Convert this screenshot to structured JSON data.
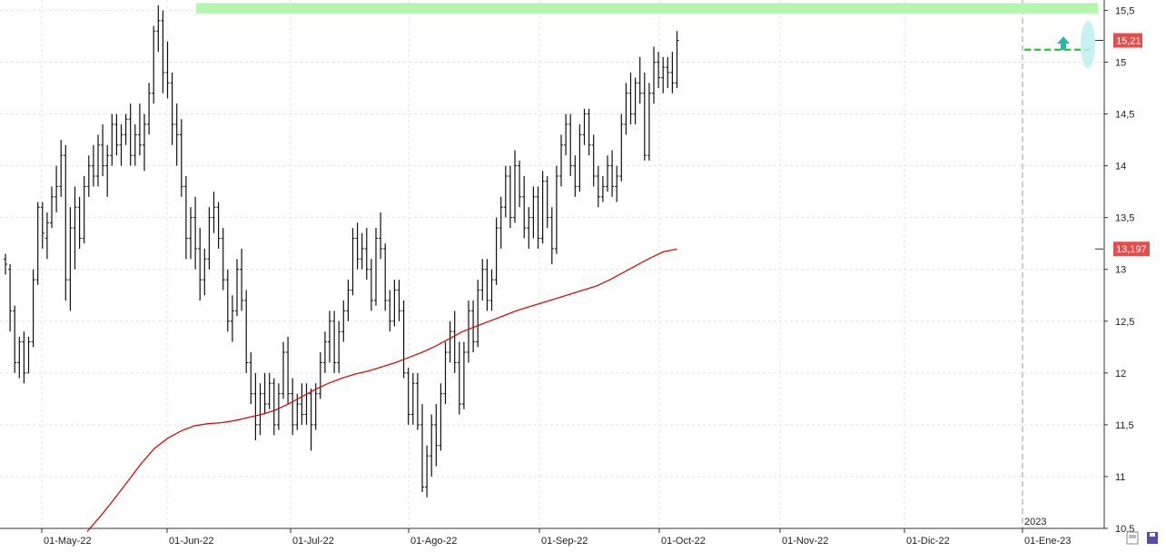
{
  "chart_data": {
    "type": "ohlc",
    "title": "",
    "xlabel": "",
    "ylabel": "",
    "ylim": [
      10.5,
      15.6
    ],
    "y_ticks": [
      "10,5",
      "11",
      "11,5",
      "12",
      "12,5",
      "13",
      "13,5",
      "14",
      "14,5",
      "15",
      "15,5"
    ],
    "x_tick_labels": [
      "01-May-22",
      "01-Jun-22",
      "01-Jul-22",
      "01-Ago-22",
      "01-Sep-22",
      "01-Oct-22",
      "01-Nov-22",
      "01-Dic-22",
      "01-Ene-23"
    ],
    "year_label": "2023",
    "grid": true,
    "price_badges": {
      "last": "15,21",
      "moving_average": "13,197"
    },
    "colors": {
      "bars": "#111111",
      "moving_average": "#cc1111",
      "resistance_zone": "#b6f5b0",
      "breakout_line": "#22cc22",
      "arrow": "#2ab5a8",
      "highlight": "#bfeff0",
      "badge": "#e05050"
    },
    "annotations": {
      "resistance_zone": [
        15.47,
        15.57
      ],
      "breakout_level": 15.12
    },
    "series": [
      {
        "type": "ohlc",
        "values": [
          [
            13.1,
            13.15,
            12.95,
            13.05
          ],
          [
            13.0,
            13.05,
            12.4,
            12.6
          ],
          [
            12.6,
            12.65,
            12.0,
            12.1
          ],
          [
            12.1,
            12.35,
            11.95,
            12.3
          ],
          [
            12.3,
            12.4,
            11.9,
            12.0
          ],
          [
            12.0,
            12.35,
            12.0,
            12.3
          ],
          [
            12.3,
            13.0,
            12.25,
            12.9
          ],
          [
            12.9,
            13.65,
            12.85,
            13.6
          ],
          [
            13.6,
            13.65,
            13.2,
            13.35
          ],
          [
            13.3,
            13.55,
            13.1,
            13.45
          ],
          [
            13.45,
            13.8,
            13.4,
            13.7
          ],
          [
            13.7,
            14.0,
            13.55,
            13.8
          ],
          [
            13.8,
            14.25,
            13.7,
            14.1
          ],
          [
            14.1,
            14.2,
            12.7,
            12.9
          ],
          [
            12.9,
            13.6,
            12.6,
            13.4
          ],
          [
            13.4,
            13.8,
            13.0,
            13.6
          ],
          [
            13.6,
            13.7,
            13.2,
            13.3
          ],
          [
            13.3,
            13.9,
            13.25,
            13.8
          ],
          [
            13.8,
            14.1,
            13.7,
            14.0
          ],
          [
            14.0,
            14.2,
            13.8,
            13.9
          ],
          [
            13.9,
            14.3,
            13.8,
            14.2
          ],
          [
            14.2,
            14.4,
            13.9,
            14.0
          ],
          [
            14.0,
            14.2,
            13.7,
            14.1
          ],
          [
            14.1,
            14.5,
            14.0,
            14.4
          ],
          [
            14.4,
            14.5,
            14.1,
            14.2
          ],
          [
            14.2,
            14.4,
            14.0,
            14.3
          ],
          [
            14.3,
            14.5,
            14.2,
            14.45
          ],
          [
            14.45,
            14.6,
            14.0,
            14.1
          ],
          [
            14.1,
            14.4,
            14.0,
            14.3
          ],
          [
            14.3,
            14.6,
            14.1,
            14.2
          ],
          [
            14.2,
            14.5,
            13.95,
            14.4
          ],
          [
            14.4,
            14.8,
            14.3,
            14.7
          ],
          [
            14.7,
            15.35,
            14.6,
            15.3
          ],
          [
            15.3,
            15.55,
            15.1,
            15.4
          ],
          [
            15.4,
            15.5,
            14.7,
            14.9
          ],
          [
            14.9,
            15.2,
            14.65,
            14.8
          ],
          [
            14.8,
            14.9,
            14.2,
            14.4
          ],
          [
            14.4,
            14.6,
            14.0,
            14.3
          ],
          [
            14.3,
            14.45,
            13.7,
            13.8
          ],
          [
            13.8,
            13.9,
            13.1,
            13.3
          ],
          [
            13.3,
            13.6,
            13.1,
            13.5
          ],
          [
            13.5,
            13.7,
            13.0,
            13.2
          ],
          [
            13.2,
            13.4,
            12.7,
            12.9
          ],
          [
            12.9,
            13.2,
            12.75,
            13.1
          ],
          [
            13.1,
            13.6,
            13.0,
            13.5
          ],
          [
            13.5,
            13.75,
            13.35,
            13.6
          ],
          [
            13.6,
            13.65,
            13.2,
            13.3
          ],
          [
            13.3,
            13.4,
            12.8,
            12.9
          ],
          [
            12.9,
            13.0,
            12.4,
            12.5
          ],
          [
            12.5,
            12.75,
            12.3,
            12.6
          ],
          [
            12.6,
            13.1,
            12.55,
            13.0
          ],
          [
            13.0,
            13.2,
            12.6,
            12.7
          ],
          [
            12.7,
            12.8,
            12.0,
            12.1
          ],
          [
            12.1,
            12.2,
            11.7,
            11.8
          ],
          [
            11.8,
            12.0,
            11.35,
            11.5
          ],
          [
            11.5,
            11.9,
            11.4,
            11.8
          ],
          [
            11.8,
            12.0,
            11.6,
            11.7
          ],
          [
            11.7,
            12.0,
            11.65,
            11.9
          ],
          [
            11.9,
            11.95,
            11.4,
            11.5
          ],
          [
            11.5,
            11.9,
            11.45,
            11.8
          ],
          [
            11.8,
            12.3,
            11.75,
            12.2
          ],
          [
            12.2,
            12.35,
            11.7,
            11.8
          ],
          [
            11.8,
            11.95,
            11.4,
            11.5
          ],
          [
            11.5,
            11.8,
            11.45,
            11.7
          ],
          [
            11.7,
            11.9,
            11.5,
            11.6
          ],
          [
            11.6,
            11.9,
            11.5,
            11.8
          ],
          [
            11.8,
            11.85,
            11.25,
            11.5
          ],
          [
            11.5,
            11.9,
            11.45,
            11.8
          ],
          [
            11.8,
            12.2,
            11.75,
            12.1
          ],
          [
            12.1,
            12.4,
            12.0,
            12.3
          ],
          [
            12.3,
            12.6,
            12.1,
            12.5
          ],
          [
            12.5,
            12.6,
            12.0,
            12.1
          ],
          [
            12.1,
            12.5,
            12.0,
            12.4
          ],
          [
            12.4,
            12.7,
            12.3,
            12.6
          ],
          [
            12.6,
            12.9,
            12.5,
            12.8
          ],
          [
            12.8,
            13.4,
            12.75,
            13.3
          ],
          [
            13.3,
            13.45,
            13.0,
            13.1
          ],
          [
            13.1,
            13.35,
            13.0,
            13.2
          ],
          [
            13.2,
            13.4,
            12.9,
            13.0
          ],
          [
            13.0,
            13.1,
            12.6,
            12.7
          ],
          [
            12.7,
            13.4,
            12.65,
            13.3
          ],
          [
            13.3,
            13.55,
            13.1,
            13.2
          ],
          [
            13.2,
            13.25,
            12.6,
            12.7
          ],
          [
            12.7,
            12.8,
            12.4,
            12.5
          ],
          [
            12.5,
            12.9,
            12.45,
            12.8
          ],
          [
            12.8,
            12.9,
            12.5,
            12.6
          ],
          [
            12.6,
            12.7,
            11.95,
            12.0
          ],
          [
            12.0,
            12.05,
            11.5,
            11.6
          ],
          [
            11.6,
            12.0,
            11.5,
            11.9
          ],
          [
            11.9,
            12.0,
            11.45,
            11.5
          ],
          [
            11.5,
            11.7,
            10.85,
            10.9
          ],
          [
            10.9,
            11.3,
            10.8,
            11.2
          ],
          [
            11.2,
            11.6,
            11.0,
            11.5
          ],
          [
            11.5,
            11.7,
            11.1,
            11.3
          ],
          [
            11.3,
            11.9,
            11.25,
            11.8
          ],
          [
            11.8,
            12.3,
            11.7,
            12.2
          ],
          [
            12.2,
            12.5,
            12.1,
            12.4
          ],
          [
            12.4,
            12.6,
            12.0,
            12.1
          ],
          [
            12.1,
            12.3,
            11.6,
            11.7
          ],
          [
            11.7,
            12.3,
            11.65,
            12.2
          ],
          [
            12.2,
            12.7,
            12.1,
            12.6
          ],
          [
            12.6,
            12.7,
            12.2,
            12.3
          ],
          [
            12.3,
            12.9,
            12.25,
            12.8
          ],
          [
            12.8,
            13.1,
            12.7,
            13.0
          ],
          [
            13.0,
            13.1,
            12.6,
            12.7
          ],
          [
            12.7,
            13.0,
            12.6,
            12.9
          ],
          [
            12.9,
            13.5,
            12.85,
            13.4
          ],
          [
            13.4,
            13.7,
            13.2,
            13.6
          ],
          [
            13.6,
            14.0,
            13.5,
            13.9
          ],
          [
            13.9,
            14.0,
            13.4,
            13.5
          ],
          [
            13.5,
            14.15,
            13.45,
            14.0
          ],
          [
            14.0,
            14.05,
            13.6,
            13.7
          ],
          [
            13.7,
            13.9,
            13.3,
            13.4
          ],
          [
            13.4,
            13.6,
            13.2,
            13.5
          ],
          [
            13.5,
            13.8,
            13.3,
            13.7
          ],
          [
            13.7,
            13.8,
            13.2,
            13.3
          ],
          [
            13.3,
            13.95,
            13.25,
            13.85
          ],
          [
            13.85,
            13.9,
            13.4,
            13.5
          ],
          [
            13.5,
            13.6,
            13.05,
            13.2
          ],
          [
            13.2,
            14.0,
            13.15,
            13.9
          ],
          [
            13.9,
            14.3,
            13.8,
            14.2
          ],
          [
            14.2,
            14.5,
            14.1,
            14.4
          ],
          [
            14.4,
            14.5,
            13.9,
            14.0
          ],
          [
            14.0,
            14.1,
            13.7,
            13.8
          ],
          [
            13.8,
            14.4,
            13.75,
            14.3
          ],
          [
            14.3,
            14.55,
            14.2,
            14.5
          ],
          [
            14.5,
            14.55,
            14.1,
            14.2
          ],
          [
            14.2,
            14.3,
            13.8,
            13.9
          ],
          [
            13.9,
            14.0,
            13.6,
            13.7
          ],
          [
            13.7,
            13.9,
            13.65,
            13.8
          ],
          [
            13.8,
            14.1,
            13.75,
            14.0
          ],
          [
            14.0,
            14.15,
            13.7,
            13.8
          ],
          [
            13.8,
            14.0,
            13.65,
            13.9
          ],
          [
            13.9,
            14.5,
            13.85,
            14.4
          ],
          [
            14.4,
            14.8,
            14.3,
            14.7
          ],
          [
            14.7,
            14.9,
            14.4,
            14.5
          ],
          [
            14.5,
            14.85,
            14.4,
            14.8
          ],
          [
            14.8,
            15.05,
            14.6,
            14.7
          ],
          [
            14.7,
            14.9,
            14.05,
            14.1
          ],
          [
            14.1,
            14.8,
            14.05,
            14.7
          ],
          [
            14.7,
            15.15,
            14.6,
            15.0
          ],
          [
            15.0,
            15.1,
            14.75,
            14.85
          ],
          [
            14.85,
            15.05,
            14.7,
            14.95
          ],
          [
            14.95,
            15.05,
            14.75,
            14.9
          ],
          [
            14.9,
            15.1,
            14.7,
            14.8
          ],
          [
            14.8,
            15.3,
            14.75,
            15.21
          ]
        ]
      },
      {
        "name": "",
        "type": "line",
        "values": [
          10.47,
          10.62,
          10.78,
          10.95,
          11.12,
          11.27,
          11.37,
          11.44,
          11.49,
          11.51,
          11.52,
          11.54,
          11.57,
          11.6,
          11.64,
          11.7,
          11.77,
          11.84,
          11.9,
          11.95,
          11.99,
          12.02,
          12.06,
          12.1,
          12.15,
          12.2,
          12.26,
          12.33,
          12.4,
          12.45,
          12.5,
          12.55,
          12.6,
          12.64,
          12.68,
          12.72,
          12.76,
          12.8,
          12.84,
          12.9,
          12.97,
          13.04,
          13.11,
          13.17,
          13.197
        ]
      }
    ]
  }
}
